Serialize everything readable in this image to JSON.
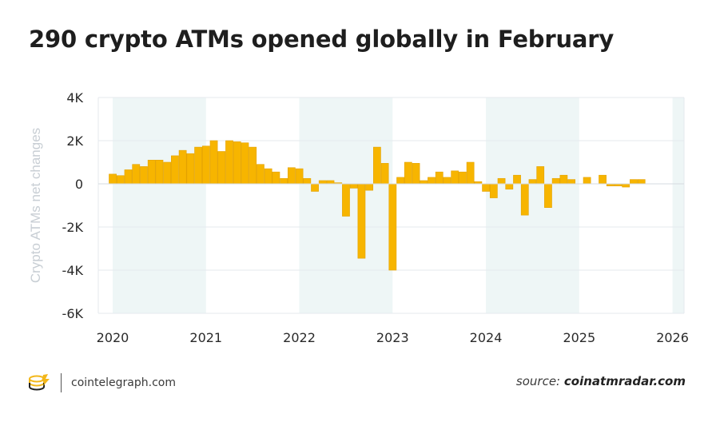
{
  "title": "290 crypto ATMs opened globally in February",
  "footer": {
    "site": "cointelegraph.com",
    "source_prefix": "source:",
    "source_name": "coinatmradar.com"
  },
  "logo_icon": "cointelegraph-logo-icon",
  "colors": {
    "bar": "#f7b500",
    "bar_edge": "#e3a200",
    "band": "#eef6f6",
    "grid": "#e4e9ee",
    "axis_label": "#c8ced4"
  },
  "chart_data": {
    "type": "bar",
    "title": "290 crypto ATMs opened globally in February",
    "xlabel": "",
    "ylabel": "Crypto ATMs net changes",
    "ylim": [
      -6000,
      4000
    ],
    "yticks": [
      4000,
      2000,
      0,
      -2000,
      -4000,
      -6000
    ],
    "ytick_labels": [
      "4K",
      "2K",
      "0",
      "-2K",
      "-4K",
      "-6K"
    ],
    "xtick_labels": [
      "2020",
      "2021",
      "2022",
      "2023",
      "2024",
      "2025",
      "2026"
    ],
    "grid": true,
    "x_start": "2020-01",
    "values": [
      450,
      380,
      650,
      900,
      800,
      1100,
      1100,
      1000,
      1300,
      1550,
      1400,
      1700,
      1750,
      2000,
      1500,
      2000,
      1950,
      1900,
      1700,
      900,
      700,
      550,
      250,
      750,
      700,
      250,
      -350,
      150,
      150,
      50,
      -1500,
      -200,
      -3450,
      -300,
      1700,
      950,
      -4000,
      300,
      1000,
      950,
      150,
      300,
      550,
      300,
      600,
      550,
      1000,
      100,
      -350,
      -650,
      250,
      -250,
      400,
      -1450,
      200,
      800,
      -1100,
      250,
      400,
      200,
      0,
      300,
      0,
      400,
      -100,
      -100,
      -150,
      200,
      200,
      0
    ]
  }
}
